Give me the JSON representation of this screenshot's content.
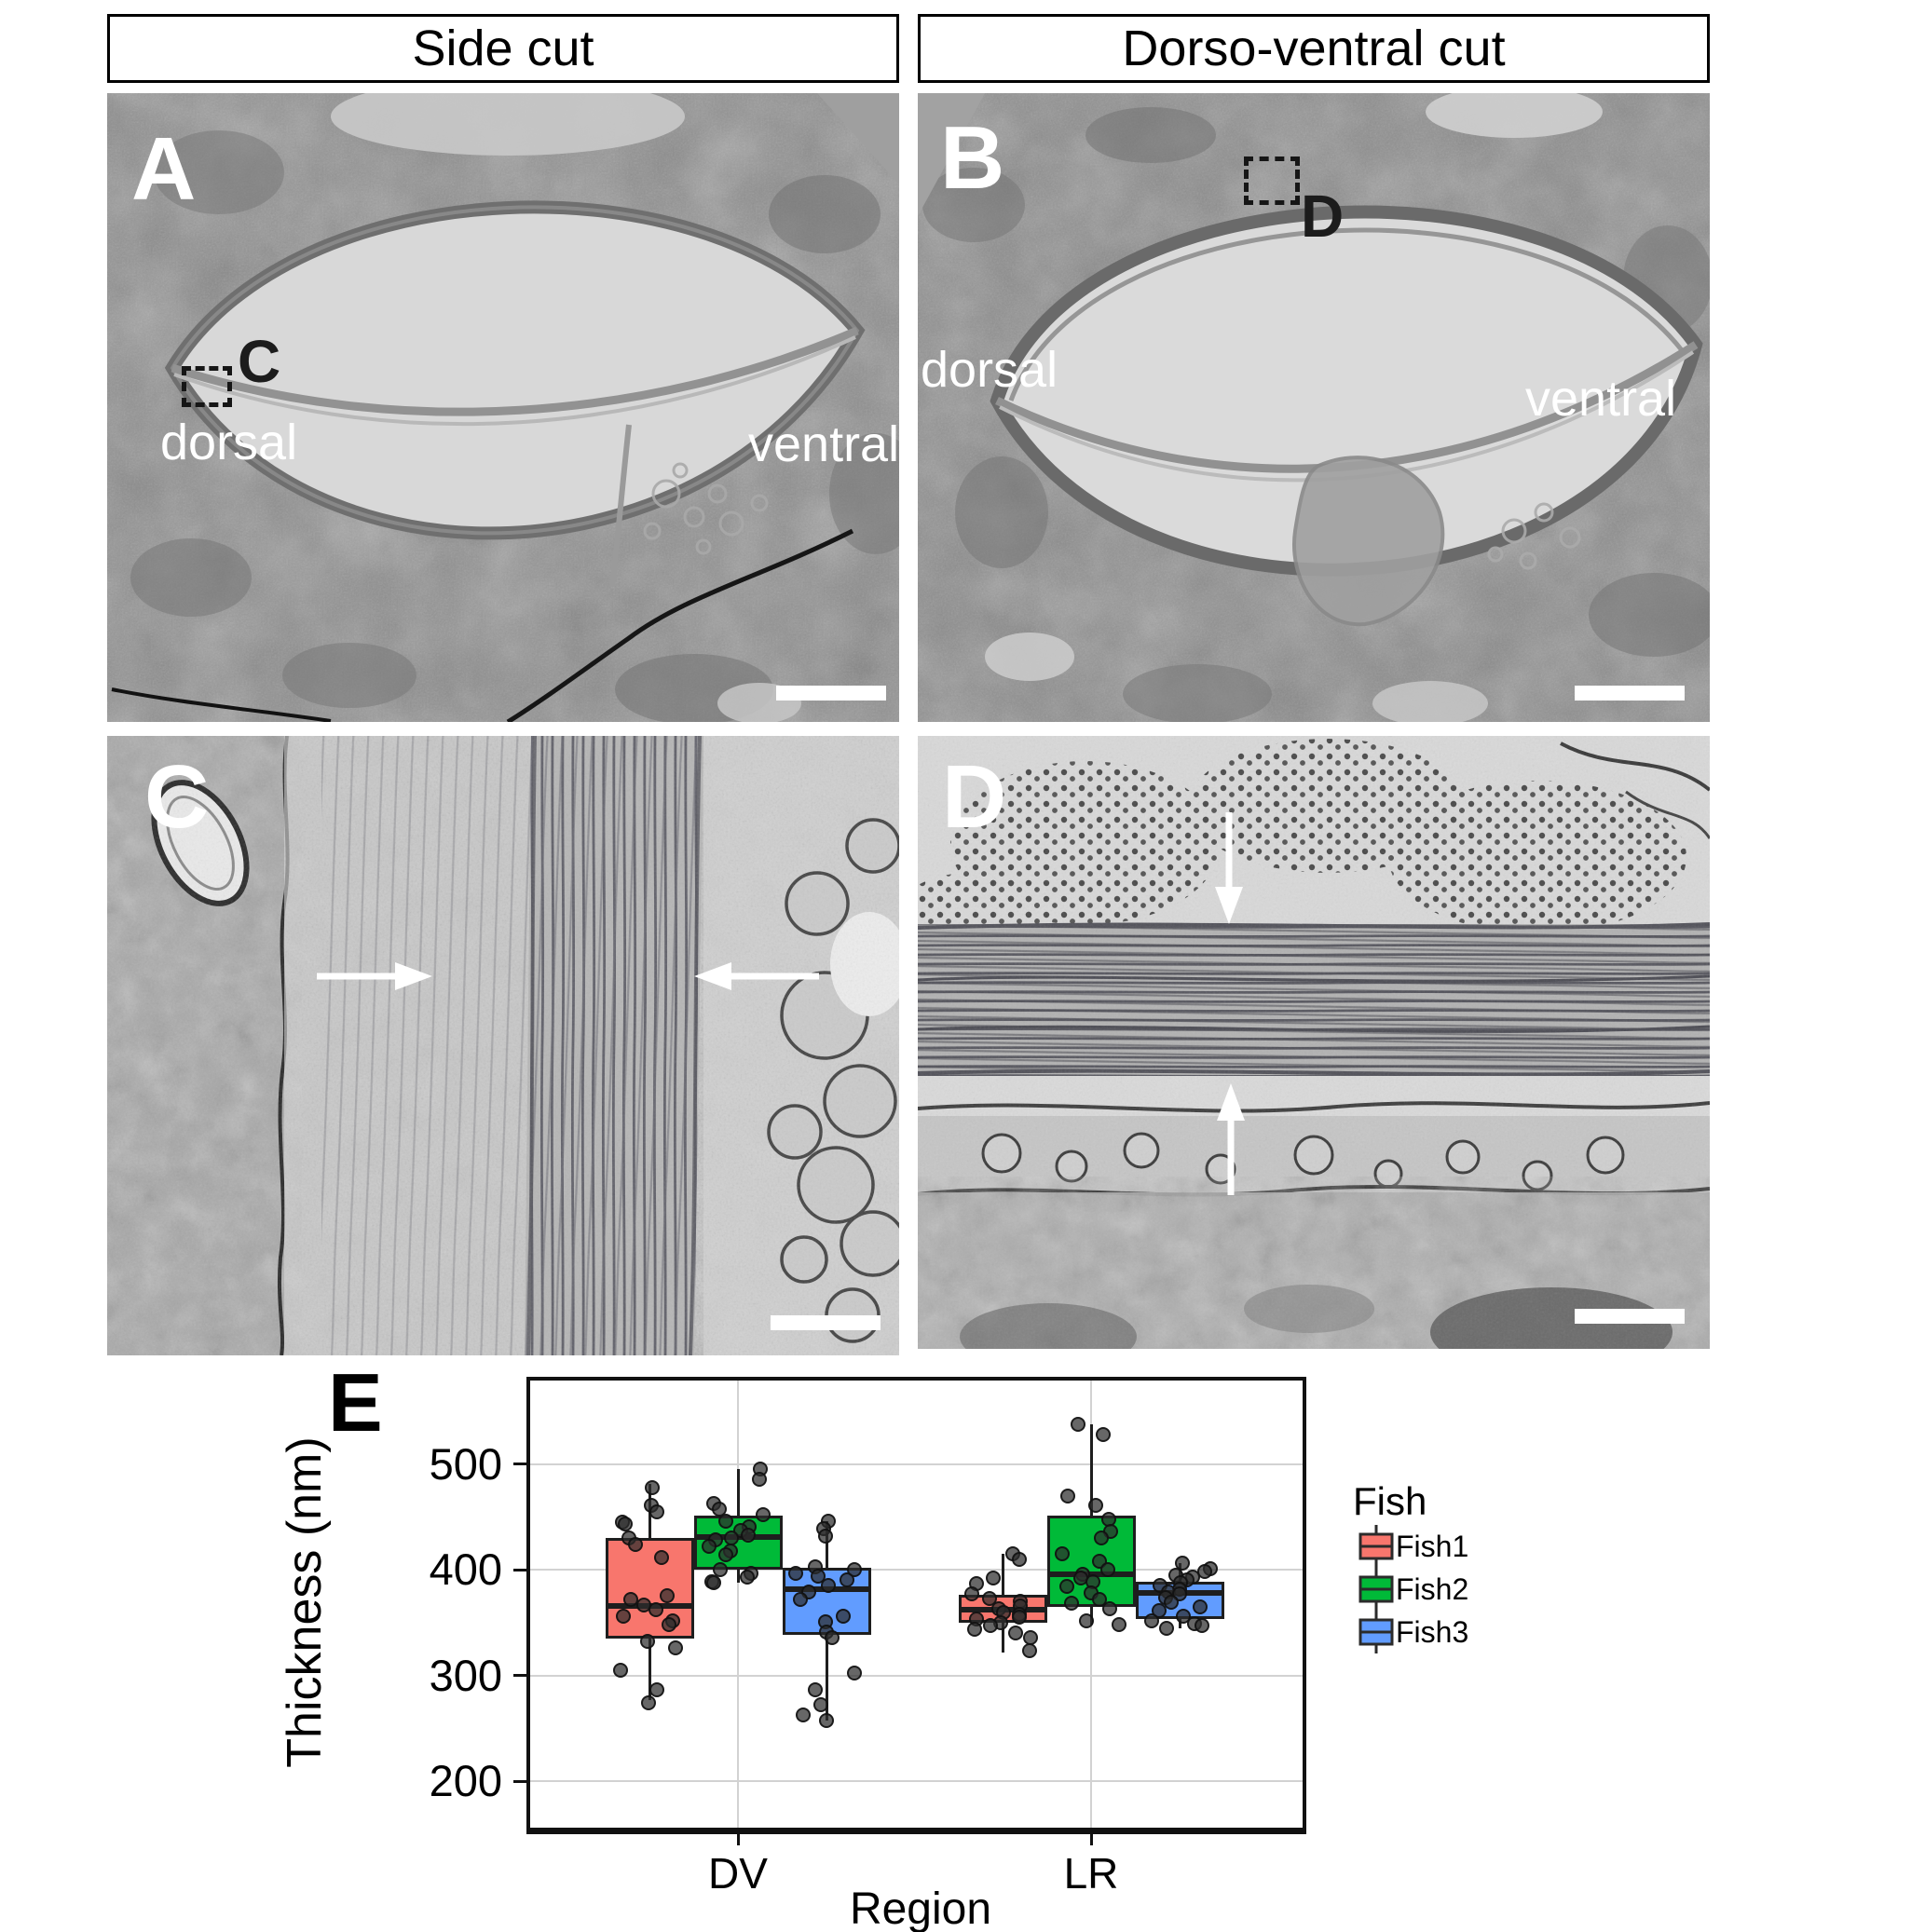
{
  "figure": {
    "headers": {
      "left": "Side cut",
      "right": "Dorso-ventral cut"
    },
    "panels": {
      "a": {
        "label": "A",
        "inset_ref": "C",
        "left_label": "dorsal",
        "right_label": "ventral"
      },
      "b": {
        "label": "B",
        "inset_ref": "D",
        "left_label": "dorsal",
        "right_label": "ventral"
      },
      "c": {
        "label": "C"
      },
      "d": {
        "label": "D"
      },
      "e": {
        "label": "E"
      }
    }
  },
  "chart_data": {
    "type": "boxplot",
    "title": "",
    "xlabel": "Region",
    "ylabel": "Thickness (nm)",
    "categories": [
      "DV",
      "LR"
    ],
    "yticks": [
      200,
      300,
      400,
      500
    ],
    "ylim": [
      156,
      579
    ],
    "grid": true,
    "legend_title": "Fish",
    "legend_position": "right",
    "series": [
      {
        "name": "Fish1",
        "color": "#F8766D",
        "boxes": [
          {
            "category": "DV",
            "whislo": 277,
            "q1": 335,
            "med": 366,
            "q3": 430,
            "whishi": 481,
            "points": [
              478,
              461,
              455,
              445,
              443,
              430,
              424,
              412,
              375,
              372,
              367,
              362,
              356,
              352,
              348,
              332,
              326,
              305,
              286,
              274
            ]
          },
          {
            "category": "LR",
            "whislo": 322,
            "q1": 350,
            "med": 362,
            "q3": 376,
            "whishi": 415,
            "points": [
              415,
              410,
              392,
              387,
              377,
              373,
              370,
              366,
              363,
              360,
              358,
              355,
              353,
              350,
              347,
              344,
              340,
              336,
              323
            ]
          }
        ]
      },
      {
        "name": "Fish2",
        "color": "#00BA38",
        "boxes": [
          {
            "category": "DV",
            "whislo": 388,
            "q1": 400,
            "med": 431,
            "q3": 451,
            "whishi": 495,
            "points": [
              495,
              486,
              463,
              457,
              452,
              446,
              441,
              437,
              433,
              430,
              428,
              422,
              418,
              414,
              400,
              397,
              393,
              389,
              388
            ]
          },
          {
            "category": "LR",
            "whislo": 348,
            "q1": 365,
            "med": 396,
            "q3": 451,
            "whishi": 538,
            "points": [
              538,
              528,
              470,
              461,
              448,
              436,
              430,
              415,
              408,
              400,
              396,
              392,
              389,
              384,
              378,
              372,
              368,
              363,
              352,
              348
            ]
          }
        ]
      },
      {
        "name": "Fish3",
        "color": "#619CFF",
        "boxes": [
          {
            "category": "DV",
            "whislo": 257,
            "q1": 338,
            "med": 382,
            "q3": 402,
            "whishi": 446,
            "points": [
              446,
              439,
              432,
              403,
              400,
              397,
              394,
              390,
              385,
              379,
              372,
              356,
              351,
              341,
              336,
              302,
              286,
              272,
              263,
              257
            ]
          },
          {
            "category": "LR",
            "whislo": 345,
            "q1": 353,
            "med": 378,
            "q3": 389,
            "whishi": 406,
            "points": [
              406,
              401,
              398,
              395,
              393,
              390,
              388,
              385,
              382,
              379,
              377,
              374,
              369,
              365,
              361,
              356,
              352,
              349,
              347,
              345
            ]
          }
        ]
      }
    ]
  }
}
